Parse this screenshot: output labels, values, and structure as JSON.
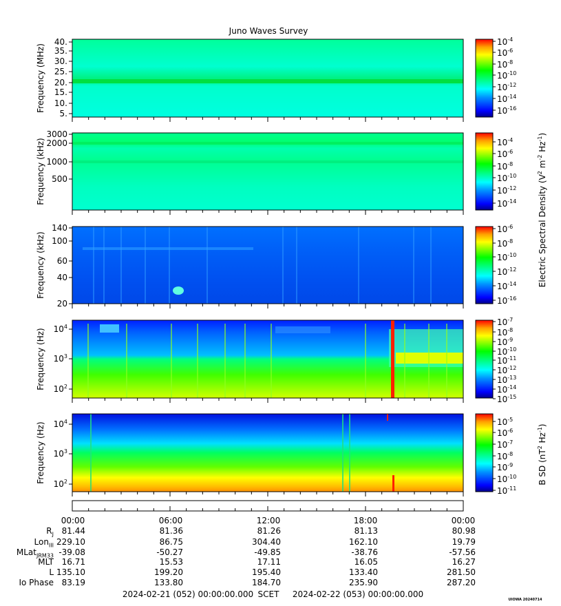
{
  "title": "Juno Waves Survey",
  "colors": {
    "scale": [
      "#00008b",
      "#0000ff",
      "#0080ff",
      "#00ffff",
      "#00ff80",
      "#00ff00",
      "#80ff00",
      "#ffff00",
      "#ffa000",
      "#ff0000"
    ]
  },
  "chart_data": [
    {
      "type": "heatmap",
      "ylabel": "Frequency (MHz)",
      "yticks": [
        "40.",
        "35.",
        "30.",
        "25.",
        "20.",
        "15.",
        "10.",
        "5."
      ],
      "colorbar_ticks": [
        "10^-4",
        "10^-6",
        "10^-8",
        "10^-10",
        "10^-12",
        "10^-14",
        "10^-16"
      ]
    },
    {
      "type": "heatmap",
      "ylabel": "Frequency (kHz)",
      "yticks": [
        "3000",
        "2000",
        "1000",
        "500"
      ],
      "colorbar_ticks": [
        "10^-4",
        "10^-6",
        "10^-8",
        "10^-10",
        "10^-12",
        "10^-14"
      ]
    },
    {
      "type": "heatmap",
      "ylabel": "Frequency (kHz)",
      "yticks": [
        "140",
        "100",
        "60",
        "40",
        "20"
      ],
      "colorbar_ticks": [
        "10^-6",
        "10^-8",
        "10^-10",
        "10^-12",
        "10^-14",
        "10^-16"
      ]
    },
    {
      "type": "heatmap",
      "ylabel": "Frequency (Hz)",
      "yticks": [
        "10^4",
        "10^3",
        "10^2"
      ],
      "colorbar_ticks": [
        "10^-7",
        "10^-8",
        "10^-9",
        "10^-10",
        "10^-11",
        "10^-12",
        "10^-13",
        "10^-14",
        "10^-15"
      ]
    },
    {
      "type": "heatmap",
      "ylabel": "Frequency (Hz)",
      "yticks": [
        "10^4",
        "10^3",
        "10^2"
      ],
      "colorbar_ticks": [
        "10^-5",
        "10^-6",
        "10^-7",
        "10^-8",
        "10^-9",
        "10^-10",
        "10^-11"
      ]
    }
  ],
  "colorbar_labels": {
    "electric": "Electric Spectral Density (V^2 m^-2 Hz^-1)",
    "magnetic": "B SD (nT^2 Hz^-1)"
  },
  "time_axis": [
    "00:00",
    "06:00",
    "12:00",
    "18:00",
    "00:00"
  ],
  "ephemeris": {
    "labels": [
      "R_J",
      "Lon_III",
      "MLat_JRM33",
      "MLT",
      "L",
      "Io Phase"
    ],
    "rows": [
      [
        "81.44",
        "81.36",
        "81.26",
        "81.13",
        "80.98"
      ],
      [
        "229.10",
        "86.75",
        "304.40",
        "162.10",
        "19.79"
      ],
      [
        "-39.08",
        "-50.27",
        "-49.85",
        "-38.76",
        "-57.56"
      ],
      [
        "16.71",
        "15.53",
        "17.11",
        "16.05",
        "16.27"
      ],
      [
        "135.10",
        "199.20",
        "195.40",
        "133.40",
        "281.50"
      ],
      [
        "83.19",
        "133.80",
        "184.70",
        "235.90",
        "287.20"
      ]
    ]
  },
  "footer": {
    "start": "2024-02-21 (052) 00:00:00.000",
    "mid": "SCET",
    "end": "2024-02-22 (053) 00:00:00.000",
    "stamp": "UIOWA 20240714"
  }
}
